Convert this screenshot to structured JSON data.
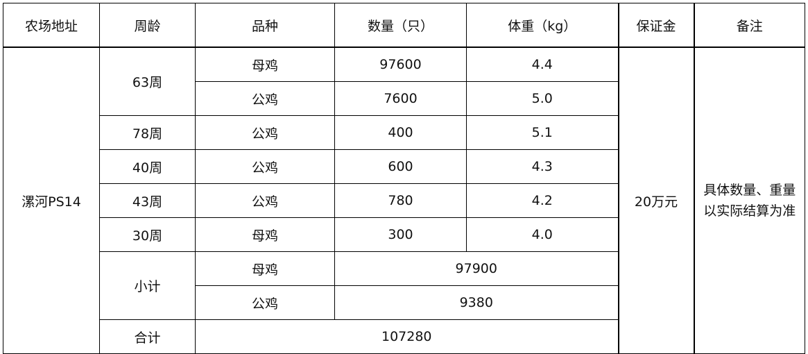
{
  "headers": [
    "农场地址",
    "周龄",
    "品种",
    "数量（只）",
    "体重（kg）",
    "保证金",
    "备注"
  ],
  "farm": "漯河PS14",
  "deposit": "20万元",
  "note": "具体数量、重量以实际结算为准",
  "rows": [
    {
      "age": "63周",
      "breed": "母鸡",
      "qty": "97600",
      "weight": "4.4"
    },
    {
      "age": "63周",
      "breed": "公鸡",
      "qty": "7600",
      "weight": "5.0"
    },
    {
      "age": "78周",
      "breed": "公鸡",
      "qty": "400",
      "weight": "5.1"
    },
    {
      "age": "40周",
      "breed": "公鸡",
      "qty": "600",
      "weight": "4.3"
    },
    {
      "age": "43周",
      "breed": "公鸡",
      "qty": "780",
      "weight": "4.2"
    },
    {
      "age": "30周",
      "breed": "母鸡",
      "qty": "300",
      "weight": "4.0"
    }
  ],
  "subtotal": {
    "label": "小计",
    "items": [
      {
        "breed": "母鸡",
        "qty": "97900"
      },
      {
        "breed": "公鸡",
        "qty": "9380"
      }
    ]
  },
  "total": {
    "label": "合计",
    "qty": "107280"
  }
}
